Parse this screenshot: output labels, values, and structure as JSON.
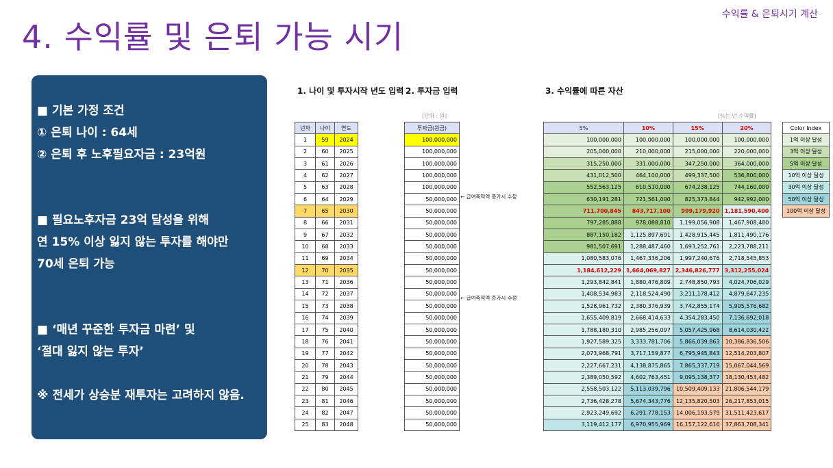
{
  "header": {
    "top_label": "수익률 & 은퇴시기 계산",
    "title": "4. 수익률 및 은퇴 가능 시기"
  },
  "info": {
    "l1": "■ 기본 가정 조건",
    "l2": "① 은퇴 나이 : 64세",
    "l3": "② 은퇴 후 노후필요자금 : 23억원",
    "l4": "■ 필요노후자금 23억 달성을 위해",
    "l5": "연 15% 이상  잃지 않는 투자를 해야만",
    "l6": "70세 은퇴 가능",
    "l7": "■ ‘매년 꾸준한 투자금 마련’ 및",
    "l8": "‘절대 잃지 않는 투자’",
    "l9": "※ 전세가 상승분 재투자는 고려하지 않음."
  },
  "sheet": {
    "sec1": "1. 나이 및 투자시작 년도 입력",
    "sec2": "2. 투자금 입력",
    "sec3": "3. 수익률에 따른 자산",
    "unit": "[단위 : 원]",
    "rate_note": "[%는 년 수익률]",
    "headers": [
      "년차",
      "나이",
      "연도",
      "투자금(원금)",
      "5%",
      "10%",
      "15%",
      "20%"
    ],
    "note_text": "← 급여축적액 증가시 수정",
    "rows": [
      [
        "1",
        "59",
        "2024",
        "100,000,000",
        "100,000,000",
        "100,000,000",
        "100,000,000",
        "100,000,000"
      ],
      [
        "2",
        "60",
        "2025",
        "100,000,000",
        "205,000,000",
        "210,000,000",
        "215,000,000",
        "220,000,000"
      ],
      [
        "3",
        "61",
        "2026",
        "100,000,000",
        "315,250,000",
        "331,000,000",
        "347,250,000",
        "364,000,000"
      ],
      [
        "4",
        "62",
        "2027",
        "100,000,000",
        "431,012,500",
        "464,100,000",
        "499,337,500",
        "536,800,000"
      ],
      [
        "5",
        "63",
        "2028",
        "100,000,000",
        "552,563,125",
        "610,510,000",
        "674,238,125",
        "744,160,000"
      ],
      [
        "6",
        "64",
        "2029",
        "50,000,000",
        "630,191,281",
        "721,561,000",
        "825,373,844",
        "942,992,000"
      ],
      [
        "7",
        "65",
        "2030",
        "50,000,000",
        "711,700,845",
        "843,717,100",
        "999,179,920",
        "1,181,590,400"
      ],
      [
        "8",
        "66",
        "2031",
        "50,000,000",
        "797,285,888",
        "978,088,810",
        "1,199,056,908",
        "1,467,908,480"
      ],
      [
        "9",
        "67",
        "2032",
        "50,000,000",
        "887,150,182",
        "1,125,897,691",
        "1,428,915,445",
        "1,811,490,176"
      ],
      [
        "10",
        "68",
        "2033",
        "50,000,000",
        "981,507,691",
        "1,288,487,460",
        "1,693,252,761",
        "2,223,788,211"
      ],
      [
        "11",
        "69",
        "2034",
        "50,000,000",
        "1,080,583,076",
        "1,467,336,206",
        "1,997,240,676",
        "2,718,545,853"
      ],
      [
        "12",
        "70",
        "2035",
        "50,000,000",
        "1,184,612,229",
        "1,664,069,827",
        "2,346,826,777",
        "3,312,255,024"
      ],
      [
        "13",
        "71",
        "2036",
        "50,000,000",
        "1,293,842,841",
        "1,880,476,809",
        "2,748,850,793",
        "4,024,706,029"
      ],
      [
        "14",
        "72",
        "2037",
        "50,000,000",
        "1,408,534,983",
        "2,118,524,490",
        "3,211,178,412",
        "4,879,647,235"
      ],
      [
        "15",
        "73",
        "2038",
        "50,000,000",
        "1,528,961,732",
        "2,380,376,939",
        "3,742,855,174",
        "5,905,576,682"
      ],
      [
        "16",
        "74",
        "2039",
        "50,000,000",
        "1,655,409,819",
        "2,668,414,633",
        "4,354,283,450",
        "7,136,692,018"
      ],
      [
        "17",
        "75",
        "2040",
        "50,000,000",
        "1,788,180,310",
        "2,985,256,097",
        "5,057,425,968",
        "8,614,030,422"
      ],
      [
        "18",
        "76",
        "2041",
        "50,000,000",
        "1,927,589,325",
        "3,333,781,706",
        "5,866,039,863",
        "10,386,836,506"
      ],
      [
        "19",
        "77",
        "2042",
        "50,000,000",
        "2,073,968,791",
        "3,717,159,877",
        "6,795,945,843",
        "12,514,203,807"
      ],
      [
        "20",
        "78",
        "2043",
        "50,000,000",
        "2,227,667,231",
        "4,138,875,865",
        "7,865,337,719",
        "15,067,044,569"
      ],
      [
        "21",
        "79",
        "2044",
        "50,000,000",
        "2,389,050,592",
        "4,602,763,451",
        "9,095,138,377",
        "18,130,453,482"
      ],
      [
        "22",
        "80",
        "2045",
        "50,000,000",
        "2,558,503,122",
        "5,113,039,796",
        "10,509,409,133",
        "21,806,544,179"
      ],
      [
        "23",
        "81",
        "2046",
        "50,000,000",
        "2,736,428,278",
        "5,674,343,776",
        "12,135,820,503",
        "26,217,853,015"
      ],
      [
        "24",
        "82",
        "2047",
        "50,000,000",
        "2,923,249,692",
        "6,291,778,153",
        "14,006,193,579",
        "31,511,423,617"
      ],
      [
        "25",
        "83",
        "2048",
        "50,000,000",
        "3,119,412,177",
        "6,970,955,969",
        "16,157,122,616",
        "37,863,708,341"
      ]
    ],
    "color_index_title": "Color Index",
    "color_index": [
      "1억 이상 달성",
      "3억 이상 달성",
      "5억 이상 달성",
      "10억 이상 달성",
      "30억 이상 달성",
      "50억 이상 달성",
      "100억 이상 달성"
    ]
  },
  "colors": {
    "title": "#7030A0",
    "box": "#1F4E79",
    "tiers": [
      "#E2EFDA",
      "#C6E0B4",
      "#A9D08E",
      "#D9F0EE",
      "#BFE6E6",
      "#9FD4DC",
      "#F8CBAD"
    ]
  }
}
